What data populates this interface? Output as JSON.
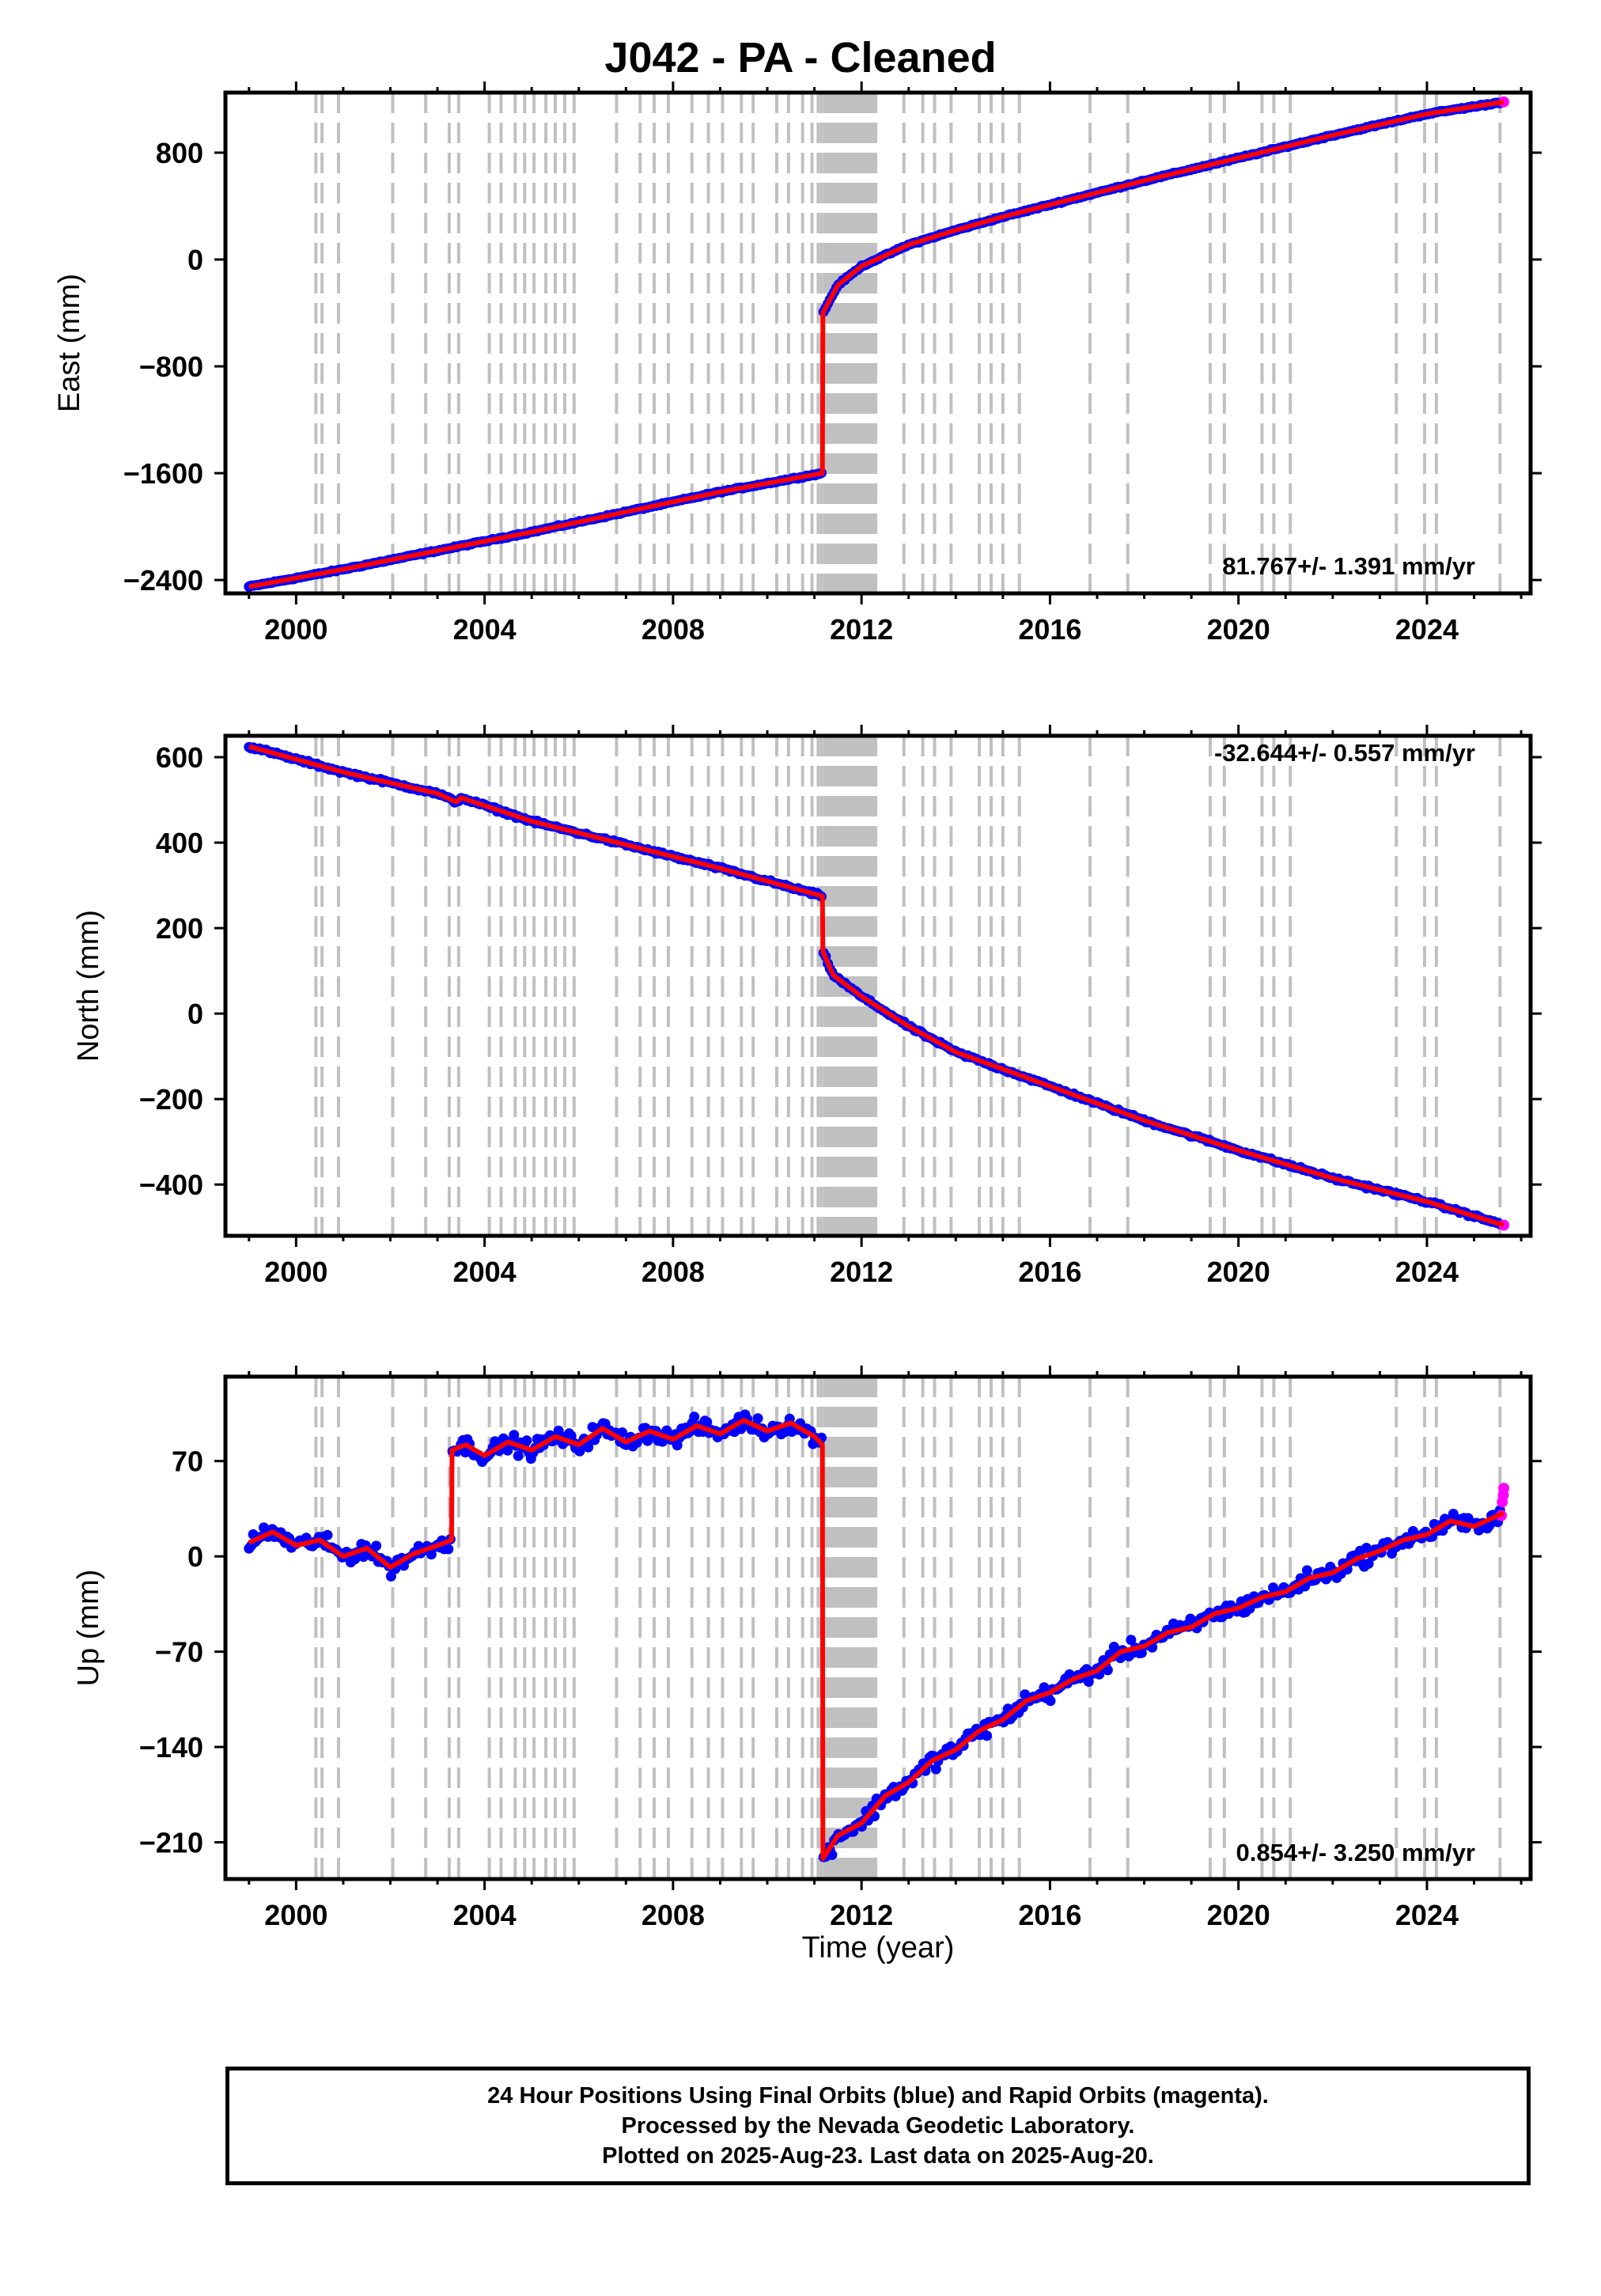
{
  "title": "J042  - PA - Cleaned",
  "colors": {
    "final_orbits": "#0000ff",
    "rapid_orbits": "#ff00ff",
    "model": "#ff0000",
    "event_lines": "#c0c0c0",
    "frame": "#000000"
  },
  "event_years": [
    2000.42,
    2000.55,
    2000.9,
    2002.05,
    2002.75,
    2003.25,
    2003.45,
    2004.1,
    2004.35,
    2004.65,
    2004.85,
    2005.05,
    2005.3,
    2005.5,
    2005.7,
    2005.9,
    2006.8,
    2007.3,
    2007.6,
    2007.9,
    2008.4,
    2008.75,
    2009.05,
    2009.45,
    2009.7,
    2010.2,
    2010.45,
    2010.75,
    2010.95,
    2011.08,
    2011.15,
    2011.22,
    2011.28,
    2011.34,
    2011.4,
    2011.46,
    2011.52,
    2011.58,
    2011.64,
    2011.7,
    2011.76,
    2011.82,
    2011.88,
    2011.94,
    2012.0,
    2012.06,
    2012.12,
    2012.18,
    2012.24,
    2012.3,
    2012.9,
    2013.3,
    2013.55,
    2013.9,
    2014.5,
    2014.75,
    2015.0,
    2015.35,
    2016.85,
    2017.65,
    2019.4,
    2019.7,
    2020.5,
    2020.75,
    2021.1,
    2023.35,
    2023.95,
    2024.2,
    2025.55
  ],
  "footer": {
    "line1": "24 Hour Positions Using Final Orbits (blue) and Rapid Orbits (magenta).",
    "line2": "Processed by the Nevada Geodetic Laboratory.",
    "line3": "Plotted on 2025-Aug-23. Last data on 2025-Aug-20."
  },
  "chart_data": [
    {
      "type": "scatter",
      "name": "east",
      "ylabel": "East (mm)",
      "xlim": [
        1998.5,
        2026.2
      ],
      "ylim": [
        -2500,
        1250
      ],
      "x_ticks": [
        "2000",
        "2004",
        "2008",
        "2012",
        "2016",
        "2020",
        "2024"
      ],
      "y_ticks": [
        "800",
        "0",
        "−800",
        "−1600",
        "−2400"
      ],
      "rate": "81.767+/- 1.391 mm/yr",
      "series": [
        {
          "name": "model",
          "x": [
            1999.0,
            2001.0,
            2003.0,
            2005.0,
            2007.0,
            2009.0,
            2011.17,
            2011.18,
            2011.5,
            2012.0,
            2013.0,
            2014.0,
            2015.0,
            2016.0,
            2018.0,
            2020.0,
            2022.0,
            2024.0,
            2025.63
          ],
          "y": [
            -2450,
            -2320,
            -2180,
            -2040,
            -1890,
            -1740,
            -1600,
            -400,
            -190,
            -50,
            110,
            220,
            320,
            410,
            590,
            760,
            930,
            1090,
            1180
          ]
        }
      ]
    },
    {
      "type": "scatter",
      "name": "north",
      "ylabel": "North (mm)",
      "xlim": [
        1998.5,
        2026.2
      ],
      "ylim": [
        -520,
        650
      ],
      "x_ticks": [
        "2000",
        "2004",
        "2008",
        "2012",
        "2016",
        "2020",
        "2024"
      ],
      "y_ticks": [
        "600",
        "400",
        "200",
        "0",
        "−200",
        "−400"
      ],
      "rate": "-32.644+/- 0.557 mm/yr",
      "series": [
        {
          "name": "model",
          "x": [
            1999.0,
            2001.0,
            2003.0,
            2003.4,
            2003.5,
            2005.0,
            2007.0,
            2009.0,
            2011.17,
            2011.18,
            2011.4,
            2012.0,
            2013.0,
            2014.0,
            2016.0,
            2018.0,
            2020.0,
            2022.0,
            2024.0,
            2025.63
          ],
          "y": [
            625,
            565,
            515,
            495,
            505,
            450,
            395,
            340,
            275,
            145,
            90,
            40,
            -30,
            -90,
            -170,
            -250,
            -320,
            -385,
            -440,
            -495
          ]
        }
      ]
    },
    {
      "type": "scatter",
      "name": "up",
      "ylabel": "Up (mm)",
      "xlabel": "Time (year)",
      "xlim": [
        1998.5,
        2026.2
      ],
      "ylim": [
        -237,
        132
      ],
      "x_ticks": [
        "2000",
        "2004",
        "2008",
        "2012",
        "2016",
        "2020",
        "2024"
      ],
      "y_ticks": [
        "70",
        "0",
        "−70",
        "−140",
        "−210"
      ],
      "rate": "0.854+/- 3.250 mm/yr",
      "series": [
        {
          "name": "model",
          "x": [
            1999.0,
            1999.5,
            2000.0,
            2000.5,
            2001.0,
            2001.5,
            2002.0,
            2002.5,
            2003.0,
            2003.3,
            2003.31,
            2003.6,
            2004.0,
            2004.5,
            2005.0,
            2005.5,
            2006.0,
            2006.5,
            2007.0,
            2007.5,
            2008.0,
            2008.5,
            2009.0,
            2009.5,
            2010.0,
            2010.5,
            2011.0,
            2011.17,
            2011.18,
            2011.5,
            2012.0,
            2012.5,
            2013.0,
            2013.5,
            2014.0,
            2014.5,
            2015.0,
            2015.5,
            2016.0,
            2016.5,
            2017.0,
            2017.5,
            2018.0,
            2018.5,
            2019.0,
            2019.5,
            2020.0,
            2020.5,
            2021.0,
            2021.5,
            2022.0,
            2022.5,
            2023.0,
            2023.5,
            2024.0,
            2024.5,
            2025.0,
            2025.63
          ],
          "y": [
            10,
            18,
            8,
            12,
            0,
            6,
            -8,
            2,
            8,
            12,
            78,
            82,
            74,
            84,
            78,
            88,
            82,
            94,
            84,
            92,
            86,
            96,
            90,
            100,
            92,
            98,
            88,
            82,
            -222,
            -205,
            -196,
            -176,
            -166,
            -150,
            -142,
            -128,
            -120,
            -106,
            -100,
            -90,
            -84,
            -70,
            -66,
            -56,
            -52,
            -42,
            -38,
            -30,
            -26,
            -16,
            -12,
            -2,
            4,
            12,
            16,
            26,
            22,
            32
          ]
        },
        {
          "name": "rapid",
          "x": [
            2025.58,
            2025.6,
            2025.62,
            2025.63
          ],
          "y": [
            30,
            40,
            45,
            50
          ]
        }
      ]
    }
  ]
}
